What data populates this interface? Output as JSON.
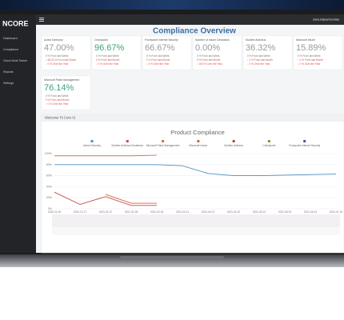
{
  "app": {
    "logo": "NCORE",
    "user": "dana.b@partnerdata",
    "title": "Compliance Overview",
    "sidebar": [
      "Dashboard",
      "Compliance",
      "Cloud Work Tasker",
      "Reports",
      "Settings"
    ],
    "cards": [
      {
        "name": "Active Directory",
        "value": "47.00%",
        "value_color": "#9a9a9a",
        "lines": [
          "0 % From last Week",
          "↓ 68.23 % From last Month",
          "↓ 0 % Over the Year"
        ]
      },
      {
        "name": "Checkpoint",
        "value": "96.67%",
        "value_color": "#3aa57a",
        "lines": [
          "0 % From last Week",
          "0 % From last Month",
          "↓ 0 % Over the Year"
        ]
      },
      {
        "name": "Forcepoint Internet Security",
        "value": "66.67%",
        "value_color": "#9a9a9a",
        "lines": [
          "0 % From last Week",
          "0 % From last Month",
          "↓ 0 % Over the Year"
        ]
      },
      {
        "name": "Number of Intune Deviations",
        "value": "0.00%",
        "value_color": "#9a9a9a",
        "lines": [
          "0 % From last Week",
          "0 % From last Month",
          "↓ 100 % Over the Year"
        ]
      },
      {
        "name": "McAfee Antivirus",
        "value": "36.32%",
        "value_color": "#9a9a9a",
        "lines": [
          "0 % From last Week",
          "↓ 0 % From last Month",
          "↓ 0 % Over the Year"
        ]
      },
      {
        "name": "Microsoft Intune",
        "value": "15.89%",
        "value_color": "#9a9a9a",
        "lines": [
          "0 % From last Week",
          "↓ 0 % From last Month",
          "↓ 0 % Over the Year"
        ]
      },
      {
        "name": "Microsoft Patch Management",
        "value": "76.14%",
        "value_color": "#3aa57a",
        "lines": [
          "0 % From last Week",
          "0 % From last Month",
          "↓ 0 % Over the Year"
        ]
      }
    ],
    "panel_title": "Welcome To Core IS"
  },
  "chart_data": {
    "type": "line",
    "title": "Product Compliance",
    "categories": [
      "2020-11-26",
      "2020-12-17",
      "2021-01-07",
      "2021-01-28",
      "2021-02-18",
      "2021-03-11",
      "2021-04-01",
      "2021-04-22",
      "2021-05-13",
      "2021-06-03",
      "2021-06-24",
      "2021-07-15"
    ],
    "series": [
      {
        "name": "Active Directory",
        "color": "#4e8fbf",
        "values": [
          80,
          80,
          80,
          80,
          80,
          78,
          64,
          60,
          60,
          61,
          62,
          63
        ]
      },
      {
        "name": "McAfee Antivirus Deviations",
        "color": "#c0504d",
        "values": [
          30,
          8,
          22,
          6,
          6,
          null,
          null,
          null,
          null,
          null,
          null,
          null
        ]
      },
      {
        "name": "Microsoft Patch Management",
        "color": "#c9764e",
        "values": [
          96,
          96,
          96,
          96,
          97,
          null,
          null,
          null,
          null,
          null,
          null,
          null
        ]
      },
      {
        "name": "Microsoft Intune",
        "color": "#d9603b",
        "values": [
          null,
          null,
          26,
          10,
          10,
          null,
          null,
          null,
          null,
          null,
          null,
          null
        ]
      },
      {
        "name": "McAfee Antivirus",
        "color": "#a0522d",
        "values": [
          null,
          null,
          null,
          null,
          null,
          null,
          null,
          null,
          null,
          null,
          null,
          null
        ]
      },
      {
        "name": "Checkpoint",
        "color": "#7a9a3a",
        "values": [
          null,
          null,
          null,
          null,
          null,
          null,
          null,
          null,
          null,
          null,
          null,
          null
        ]
      },
      {
        "name": "Forcepoint Internet Security",
        "color": "#5b4aa0",
        "values": [
          null,
          null,
          null,
          null,
          null,
          null,
          null,
          null,
          null,
          null,
          null,
          null
        ]
      }
    ],
    "ylim": [
      0,
      100
    ],
    "yticks": [
      {
        "value": 0,
        "label": "0%"
      },
      {
        "value": 20,
        "label": "20%"
      },
      {
        "value": 40,
        "label": "40%"
      },
      {
        "value": 60,
        "label": "60%"
      },
      {
        "value": 80,
        "label": "80%"
      },
      {
        "value": 100,
        "label": "100%"
      }
    ],
    "grid": true
  }
}
